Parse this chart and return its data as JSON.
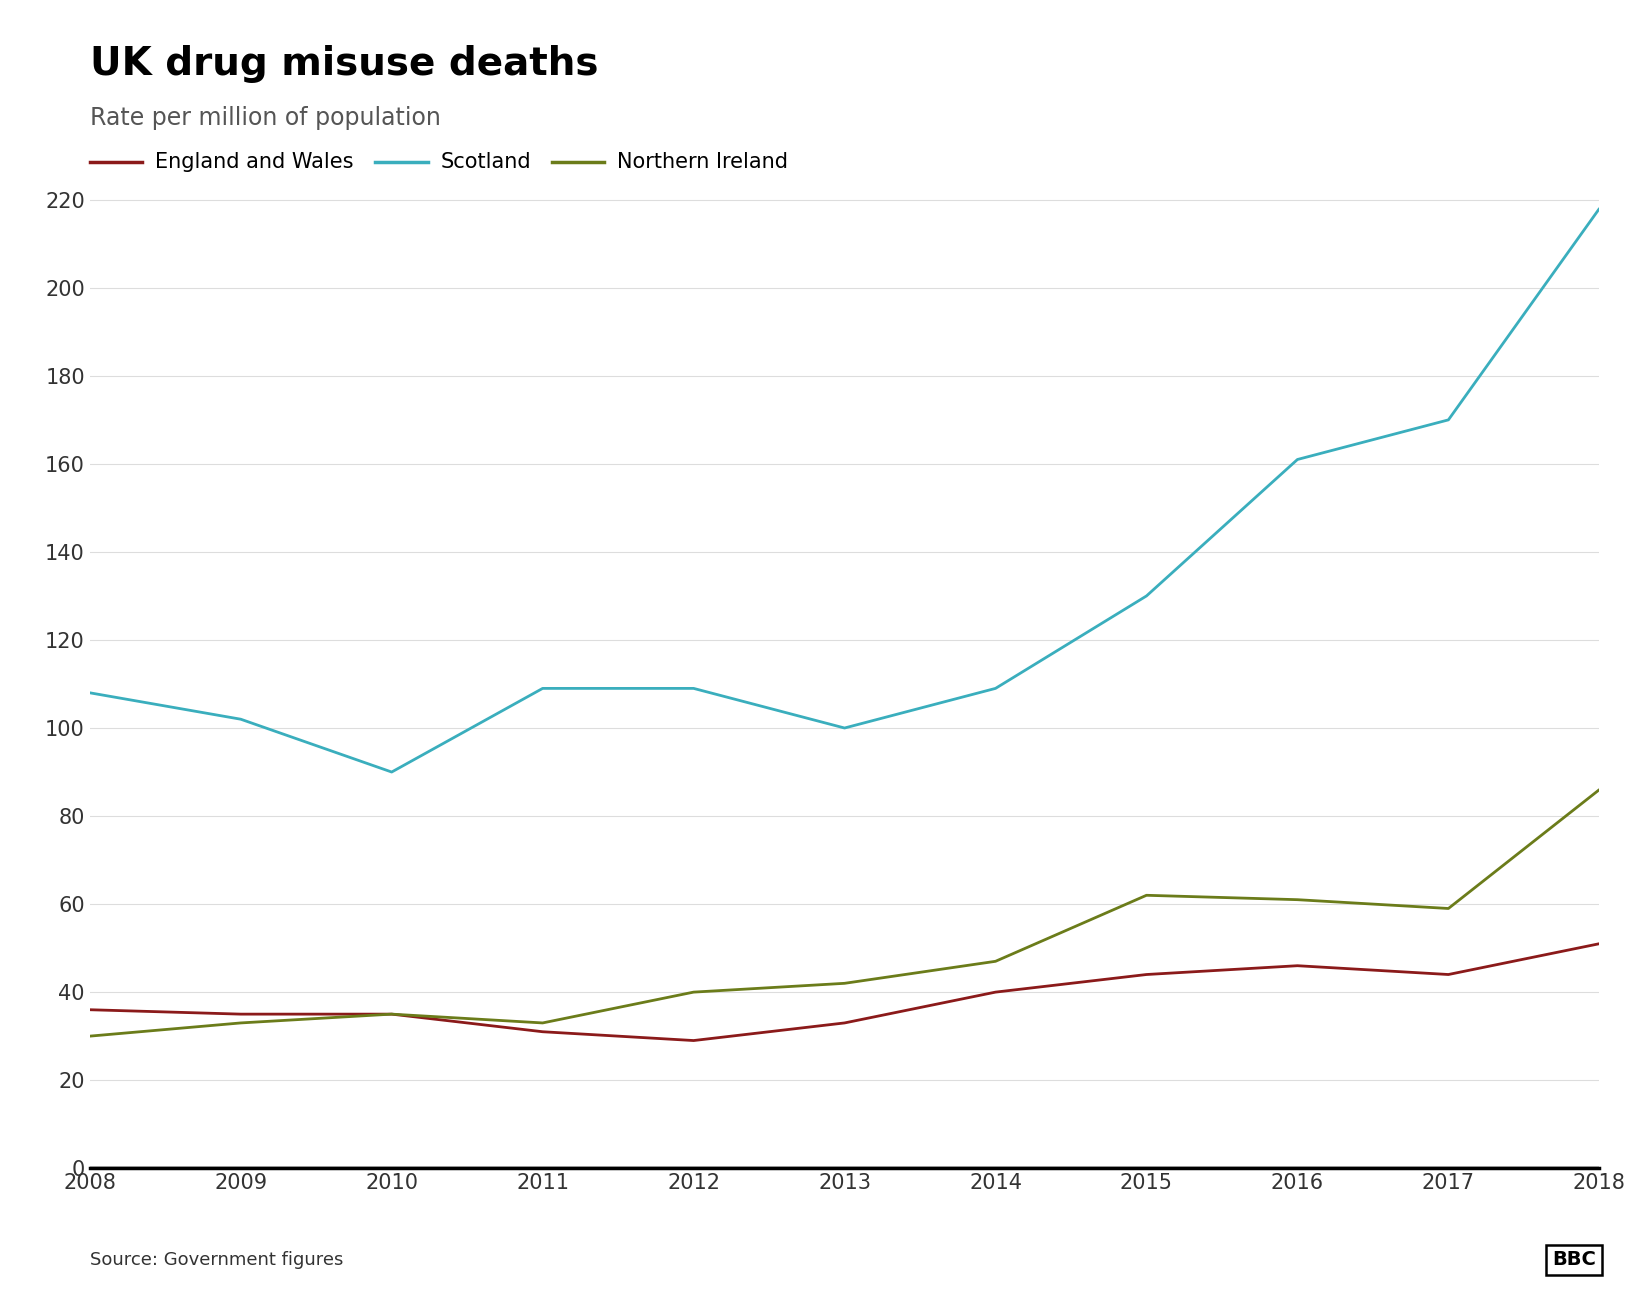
{
  "title": "UK drug misuse deaths",
  "subtitle": "Rate per million of population",
  "source": "Source: Government figures",
  "years": [
    2008,
    2009,
    2010,
    2011,
    2012,
    2013,
    2014,
    2015,
    2016,
    2017,
    2018
  ],
  "england_wales": [
    36,
    35,
    35,
    31,
    29,
    33,
    40,
    44,
    46,
    44,
    51
  ],
  "scotland": [
    108,
    102,
    90,
    109,
    109,
    100,
    109,
    130,
    161,
    170,
    218
  ],
  "northern_ireland": [
    30,
    33,
    35,
    33,
    40,
    42,
    47,
    62,
    61,
    59,
    86
  ],
  "england_wales_color": "#8B1A1A",
  "scotland_color": "#3AAEBD",
  "northern_ireland_color": "#6B7C1A",
  "ylim": [
    0,
    230
  ],
  "yticks": [
    0,
    20,
    40,
    60,
    80,
    100,
    120,
    140,
    160,
    180,
    200,
    220
  ],
  "background_color": "#FFFFFF",
  "line_width": 2.0,
  "title_fontsize": 28,
  "subtitle_fontsize": 17,
  "legend_fontsize": 15,
  "tick_fontsize": 15,
  "source_fontsize": 13
}
